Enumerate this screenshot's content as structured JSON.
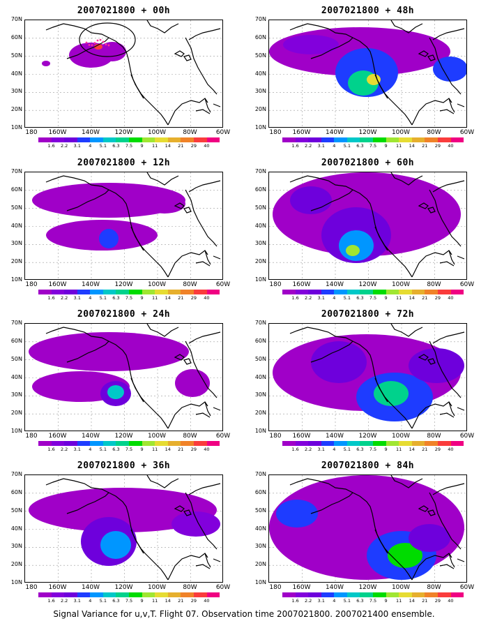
{
  "caption": "Signal Variance for u,v,T. Flight 07. Observation time 2007021800. 2007021400 ensemble.",
  "y_ticks": [
    "70N",
    "60N",
    "50N",
    "40N",
    "30N",
    "20N",
    "10N"
  ],
  "x_ticks": [
    "180",
    "160W",
    "140W",
    "120W",
    "100W",
    "80W",
    "60W"
  ],
  "colorbar": {
    "labels": [
      "1.6",
      "2.2",
      "3.1",
      "4",
      "5.1",
      "6.3",
      "7.5",
      "9",
      "11",
      "14",
      "21",
      "29",
      "40"
    ],
    "colors": [
      "#a000c8",
      "#8200dc",
      "#6e00dc",
      "#1e3cff",
      "#0096ff",
      "#00c8c8",
      "#00d28c",
      "#00dc00",
      "#a0e632",
      "#e6dc32",
      "#e6af2d",
      "#f08228",
      "#fa3c3c",
      "#f00082"
    ]
  },
  "panels": [
    {
      "title": "2007021800 + 00h"
    },
    {
      "title": "2007021800 + 48h"
    },
    {
      "title": "2007021800 + 12h"
    },
    {
      "title": "2007021800 + 60h"
    },
    {
      "title": "2007021800 + 24h"
    },
    {
      "title": "2007021800 + 72h"
    },
    {
      "title": "2007021800 + 36h"
    },
    {
      "title": "2007021800 + 84h"
    }
  ]
}
